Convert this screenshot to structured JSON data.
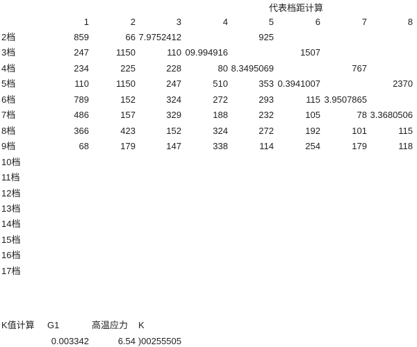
{
  "title": "代表档距计算",
  "columns": [
    "1",
    "2",
    "3",
    "4",
    "5",
    "6",
    "7",
    "8"
  ],
  "rows": [
    {
      "label": "2档",
      "cells": {
        "1": "859",
        "2": "66",
        "3": "7.9752412",
        "5": "925"
      }
    },
    {
      "label": "3档",
      "cells": {
        "1": "247",
        "2": "1150",
        "3": "110",
        "4": "09.994916",
        "6": "1507"
      }
    },
    {
      "label": "4档",
      "cells": {
        "1": "234",
        "2": "225",
        "3": "228",
        "4": "80",
        "5": "8.3495069",
        "7": "767"
      }
    },
    {
      "label": "5档",
      "cells": {
        "1": "110",
        "2": "1150",
        "3": "247",
        "4": "510",
        "5": "353",
        "6": "0.3941007",
        "8": "2370"
      }
    },
    {
      "label": "6档",
      "cells": {
        "1": "789",
        "2": "152",
        "3": "324",
        "4": "272",
        "5": "293",
        "6": "115",
        "7": "3.9507865"
      }
    },
    {
      "label": "7档",
      "cells": {
        "1": "486",
        "2": "157",
        "3": "329",
        "4": "188",
        "5": "232",
        "6": "105",
        "7": "78",
        "8": "3.3680506"
      }
    },
    {
      "label": "8档",
      "cells": {
        "1": "366",
        "2": "423",
        "3": "152",
        "4": "324",
        "5": "272",
        "6": "192",
        "7": "101",
        "8": "115"
      }
    },
    {
      "label": "9档",
      "cells": {
        "1": "68",
        "2": "179",
        "3": "147",
        "4": "338",
        "5": "114",
        "6": "254",
        "7": "179",
        "8": "118"
      }
    },
    {
      "label": "10档",
      "cells": {}
    },
    {
      "label": "11档",
      "cells": {}
    },
    {
      "label": "12档",
      "cells": {}
    },
    {
      "label": "13档",
      "cells": {}
    },
    {
      "label": "14档",
      "cells": {}
    },
    {
      "label": "15档",
      "cells": {}
    },
    {
      "label": "16档",
      "cells": {}
    },
    {
      "label": "17档",
      "cells": {}
    }
  ],
  "footer": {
    "label": "K值计算",
    "headers": [
      "G1",
      "高温应力",
      "K"
    ],
    "values": [
      "0.003342",
      "6.54",
      ")00255505"
    ]
  }
}
